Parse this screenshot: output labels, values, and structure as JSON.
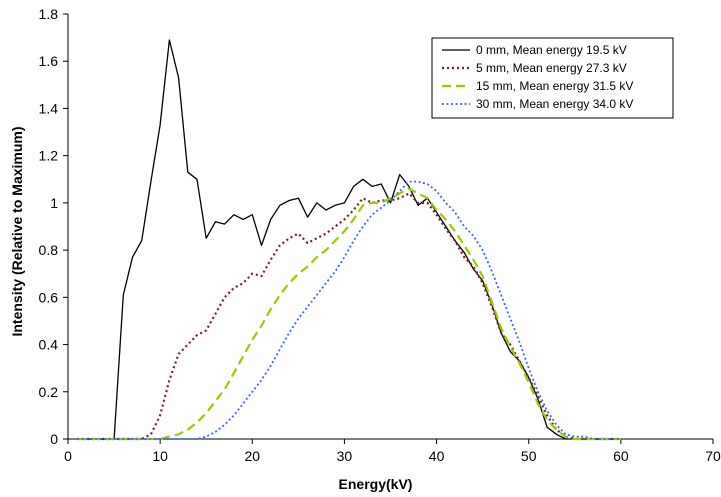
{
  "chart_data": {
    "type": "line",
    "title": "",
    "xlabel": "Energy(kV)",
    "ylabel": "Intensity (Relative to Maximum)",
    "xlim": [
      0,
      70
    ],
    "ylim": [
      0,
      1.8
    ],
    "x_ticks": [
      "0",
      "10",
      "20",
      "30",
      "40",
      "50",
      "60",
      "70"
    ],
    "y_ticks": [
      "0",
      "0.2",
      "0.4",
      "0.6",
      "0.8",
      "1",
      "1.2",
      "1.4",
      "1.6",
      "1.8"
    ],
    "grid": false,
    "legend_position": "top-right",
    "series": [
      {
        "name": "0 mm, Mean energy 19.5 kV",
        "color": "#000000",
        "dash": "solid",
        "x": [
          1,
          2,
          3,
          4,
          5,
          6,
          7,
          8,
          9,
          10,
          11,
          12,
          13,
          14,
          15,
          16,
          17,
          18,
          19,
          20,
          21,
          22,
          23,
          24,
          25,
          26,
          27,
          28,
          29,
          30,
          31,
          32,
          33,
          34,
          35,
          36,
          37,
          38,
          39,
          40,
          41,
          42,
          43,
          44,
          45,
          46,
          47,
          48,
          49,
          50,
          51,
          52,
          53,
          54,
          55,
          56,
          57,
          58,
          59,
          60
        ],
        "y": [
          0,
          0,
          0,
          0,
          0,
          0.61,
          0.77,
          0.84,
          1.09,
          1.33,
          1.69,
          1.53,
          1.13,
          1.1,
          0.85,
          0.92,
          0.91,
          0.95,
          0.93,
          0.95,
          0.82,
          0.93,
          0.99,
          1.01,
          1.02,
          0.94,
          1.0,
          0.97,
          0.99,
          1.0,
          1.07,
          1.1,
          1.07,
          1.08,
          1.0,
          1.12,
          1.07,
          0.99,
          1.02,
          0.96,
          0.9,
          0.84,
          0.79,
          0.72,
          0.67,
          0.57,
          0.45,
          0.37,
          0.33,
          0.26,
          0.17,
          0.05,
          0.02,
          0,
          0,
          0,
          0,
          0,
          0,
          0
        ]
      },
      {
        "name": "5 mm, Mean energy 27.3 kV",
        "color": "#7b1f1f",
        "dash": "dot",
        "x": [
          1,
          2,
          3,
          4,
          5,
          6,
          7,
          8,
          9,
          10,
          11,
          12,
          13,
          14,
          15,
          16,
          17,
          18,
          19,
          20,
          21,
          22,
          23,
          24,
          25,
          26,
          27,
          28,
          29,
          30,
          31,
          32,
          33,
          34,
          35,
          36,
          37,
          38,
          39,
          40,
          41,
          42,
          43,
          44,
          45,
          46,
          47,
          48,
          49,
          50,
          51,
          52,
          53,
          54,
          55,
          56,
          57,
          58,
          59,
          60
        ],
        "y": [
          0,
          0,
          0,
          0,
          0,
          0,
          0,
          0,
          0.02,
          0.1,
          0.25,
          0.36,
          0.4,
          0.44,
          0.46,
          0.53,
          0.6,
          0.64,
          0.66,
          0.7,
          0.69,
          0.76,
          0.82,
          0.85,
          0.87,
          0.83,
          0.85,
          0.87,
          0.9,
          0.93,
          0.97,
          1.02,
          1.0,
          1.01,
          1.01,
          1.02,
          1.04,
          1.0,
          1.0,
          0.95,
          0.89,
          0.84,
          0.77,
          0.73,
          0.66,
          0.56,
          0.45,
          0.4,
          0.33,
          0.26,
          0.18,
          0.1,
          0.04,
          0.01,
          0,
          0,
          0,
          0,
          0,
          0
        ]
      },
      {
        "name": "15 mm, Mean energy 31.5 kV",
        "color": "#99cc00",
        "dash": "dash",
        "x": [
          1,
          2,
          3,
          4,
          5,
          6,
          7,
          8,
          9,
          10,
          11,
          12,
          13,
          14,
          15,
          16,
          17,
          18,
          19,
          20,
          21,
          22,
          23,
          24,
          25,
          26,
          27,
          28,
          29,
          30,
          31,
          32,
          33,
          34,
          35,
          36,
          37,
          38,
          39,
          40,
          41,
          42,
          43,
          44,
          45,
          46,
          47,
          48,
          49,
          50,
          51,
          52,
          53,
          54,
          55,
          56,
          57,
          58,
          59,
          60
        ],
        "y": [
          0,
          0,
          0,
          0,
          0,
          0,
          0,
          0,
          0,
          0,
          0.01,
          0.02,
          0.04,
          0.07,
          0.11,
          0.16,
          0.21,
          0.28,
          0.35,
          0.42,
          0.48,
          0.55,
          0.61,
          0.66,
          0.7,
          0.73,
          0.77,
          0.8,
          0.84,
          0.88,
          0.93,
          0.99,
          1.0,
          1.0,
          1.02,
          1.04,
          1.06,
          1.04,
          1.02,
          0.97,
          0.93,
          0.88,
          0.82,
          0.76,
          0.69,
          0.58,
          0.47,
          0.39,
          0.32,
          0.24,
          0.15,
          0.08,
          0.04,
          0.01,
          0,
          0,
          0,
          0,
          0,
          0
        ]
      },
      {
        "name": "30 mm, Mean energy 34.0 kV",
        "color": "#3366ff",
        "dash": "fine-dot",
        "x": [
          1,
          2,
          3,
          4,
          5,
          6,
          7,
          8,
          9,
          10,
          11,
          12,
          13,
          14,
          15,
          16,
          17,
          18,
          19,
          20,
          21,
          22,
          23,
          24,
          25,
          26,
          27,
          28,
          29,
          30,
          31,
          32,
          33,
          34,
          35,
          36,
          37,
          38,
          39,
          40,
          41,
          42,
          43,
          44,
          45,
          46,
          47,
          48,
          49,
          50,
          51,
          52,
          53,
          54,
          55,
          56,
          57,
          58,
          59,
          60
        ],
        "y": [
          0,
          0,
          0,
          0,
          0,
          0,
          0,
          0,
          0,
          0,
          0,
          0,
          0,
          0,
          0.01,
          0.03,
          0.06,
          0.1,
          0.15,
          0.2,
          0.25,
          0.31,
          0.38,
          0.45,
          0.51,
          0.56,
          0.61,
          0.66,
          0.71,
          0.77,
          0.84,
          0.9,
          0.95,
          0.98,
          1.01,
          1.05,
          1.09,
          1.09,
          1.08,
          1.05,
          1.0,
          0.96,
          0.9,
          0.86,
          0.8,
          0.71,
          0.61,
          0.51,
          0.41,
          0.3,
          0.2,
          0.12,
          0.06,
          0.02,
          0.01,
          0.01,
          0,
          0,
          0,
          0
        ]
      }
    ]
  }
}
